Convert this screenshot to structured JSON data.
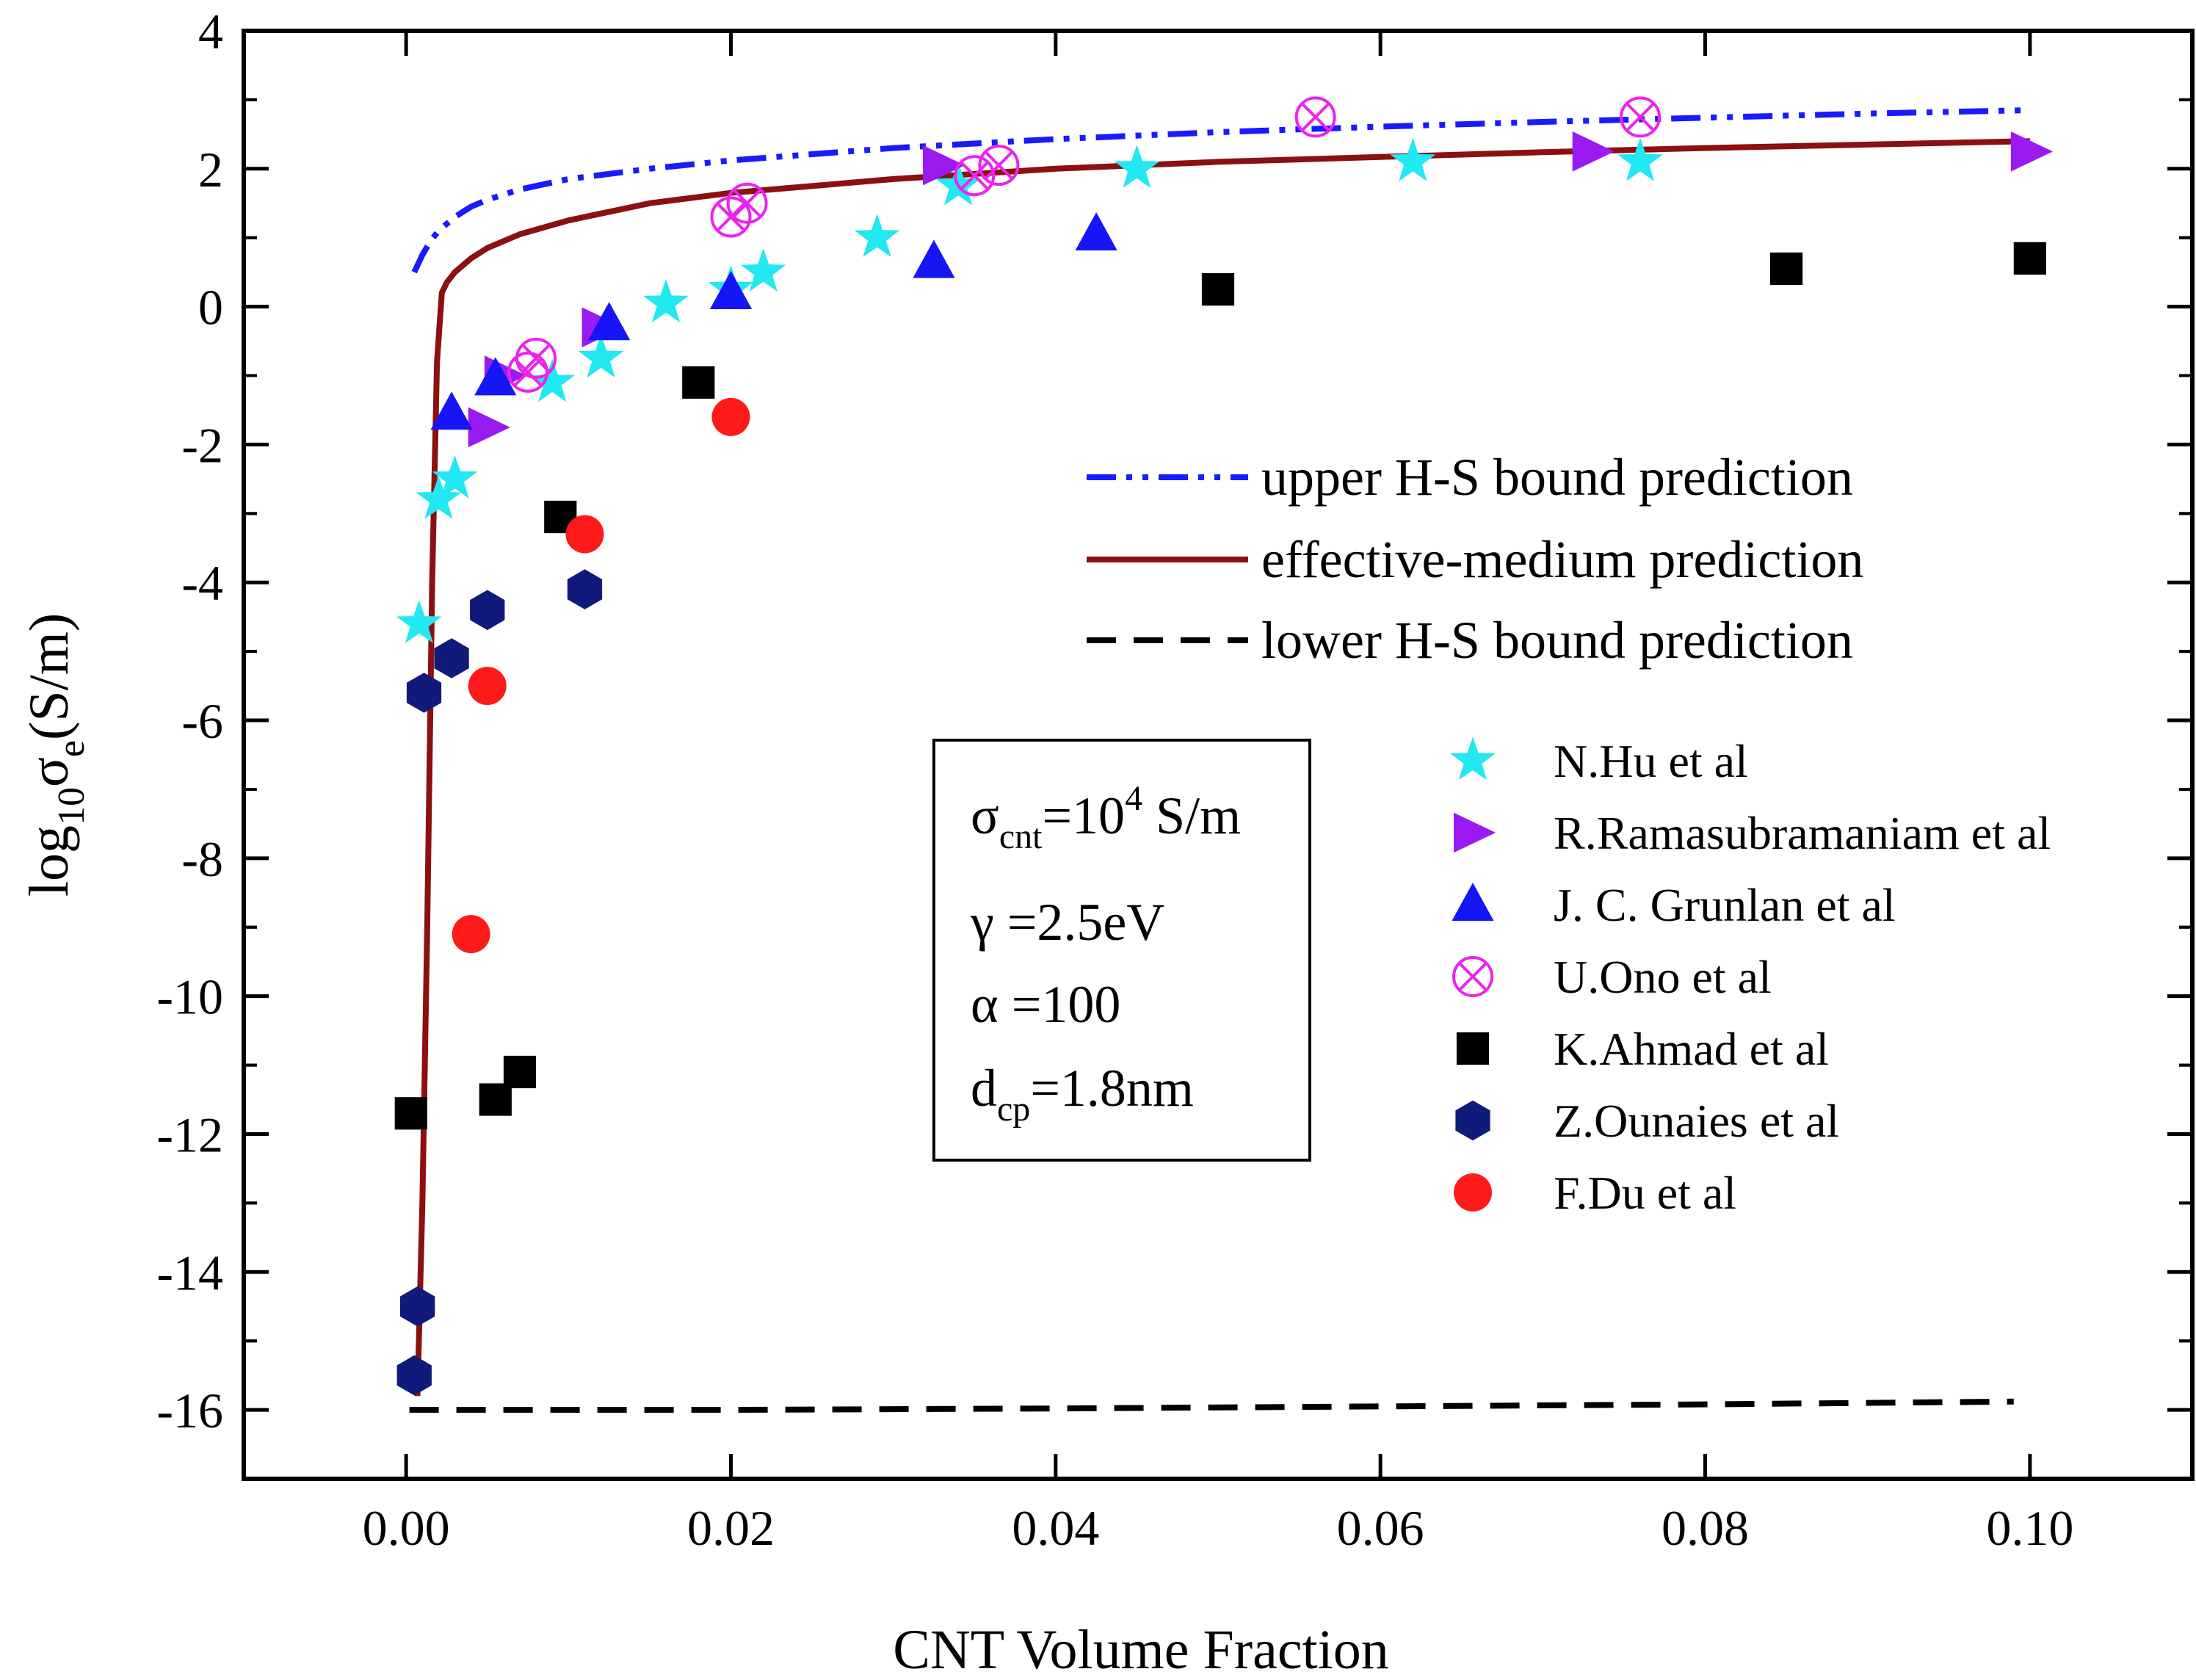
{
  "chart_data": {
    "type": "scatter",
    "title": "",
    "xlabel": "CNT Volume Fraction",
    "ylabel": {
      "prefix": "log",
      "sub1": "10",
      "sym": "σ",
      "sub2": "e",
      "suffix": "(S/m)"
    },
    "xlim": [
      -0.01,
      0.11
    ],
    "ylim": [
      -17,
      4
    ],
    "xticks": [
      0.0,
      0.02,
      0.04,
      0.06,
      0.08,
      0.1
    ],
    "xtick_labels": [
      "0.00",
      "0.02",
      "0.04",
      "0.06",
      "0.08",
      "0.10"
    ],
    "yticks": [
      4,
      2,
      0,
      -2,
      -4,
      -6,
      -8,
      -10,
      -12,
      -14,
      -16
    ],
    "ytick_labels": [
      "4",
      "2",
      "0",
      "-2",
      "-4",
      "-6",
      "-8",
      "-10",
      "-12",
      "-14",
      "-16"
    ],
    "grid": false,
    "lines": [
      {
        "name": "upper H-S bound prediction",
        "color": "#1a1aff",
        "style": "dash-dot-dot",
        "x": [
          0.0005,
          0.001,
          0.0015,
          0.002,
          0.003,
          0.004,
          0.005,
          0.007,
          0.01,
          0.015,
          0.02,
          0.03,
          0.04,
          0.05,
          0.06,
          0.07,
          0.08,
          0.09,
          0.1
        ],
        "y": [
          0.5,
          0.75,
          0.95,
          1.1,
          1.3,
          1.45,
          1.55,
          1.7,
          1.85,
          2.0,
          2.12,
          2.3,
          2.43,
          2.53,
          2.61,
          2.68,
          2.74,
          2.8,
          2.85
        ]
      },
      {
        "name": "effective-medium prediction",
        "color": "#8b1010",
        "style": "solid",
        "x": [
          0.0007,
          0.001,
          0.0013,
          0.0016,
          0.0019,
          0.0022,
          0.0025,
          0.003,
          0.004,
          0.005,
          0.007,
          0.01,
          0.015,
          0.02,
          0.03,
          0.04,
          0.05,
          0.06,
          0.07,
          0.08,
          0.09,
          0.1
        ],
        "y": [
          -15.8,
          -13,
          -9,
          -4,
          -0.8,
          0.2,
          0.35,
          0.5,
          0.7,
          0.85,
          1.05,
          1.25,
          1.5,
          1.65,
          1.85,
          2.0,
          2.1,
          2.17,
          2.24,
          2.3,
          2.35,
          2.4
        ]
      },
      {
        "name": "lower H-S bound prediction",
        "color": "#000000",
        "style": "dashed",
        "x": [
          0.0002,
          0.02,
          0.04,
          0.06,
          0.08,
          0.099
        ],
        "y": [
          -16.0,
          -16.0,
          -15.98,
          -15.95,
          -15.92,
          -15.88
        ]
      }
    ],
    "series": [
      {
        "name": "N.Hu et al",
        "marker": "star",
        "color": "#22e8f2",
        "x": [
          0.0008,
          0.002,
          0.003,
          0.009,
          0.012,
          0.016,
          0.02,
          0.022,
          0.029,
          0.034,
          0.045,
          0.062,
          0.076
        ],
        "y": [
          -4.6,
          -2.8,
          -2.5,
          -1.1,
          -0.75,
          0.05,
          0.25,
          0.5,
          1.0,
          1.75,
          2.0,
          2.1,
          2.1
        ]
      },
      {
        "name": "R.Ramasubramaniam et al",
        "marker": "triangle-right",
        "color": "#9a1af0",
        "x": [
          0.005,
          0.006,
          0.012,
          0.033,
          0.073,
          0.1
        ],
        "y": [
          -1.75,
          -1.0,
          -0.3,
          2.05,
          2.25,
          2.25
        ]
      },
      {
        "name": "J. C. Grunlan et al",
        "marker": "triangle-up",
        "color": "#1515f5",
        "x": [
          0.0028,
          0.0055,
          0.0125,
          0.02,
          0.0325,
          0.0425
        ],
        "y": [
          -1.55,
          -1.05,
          -0.25,
          0.2,
          0.65,
          1.05
        ]
      },
      {
        "name": "U.Ono et al",
        "marker": "circle-x",
        "color": "#ee22ee",
        "x": [
          0.0075,
          0.008,
          0.02,
          0.021,
          0.035,
          0.0365,
          0.056,
          0.076
        ],
        "y": [
          -0.95,
          -0.75,
          1.3,
          1.5,
          1.9,
          2.05,
          2.75,
          2.75
        ]
      },
      {
        "name": "K.Ahmad et al",
        "marker": "square",
        "color": "#000000",
        "x": [
          0.0003,
          0.0055,
          0.007,
          0.0095,
          0.018,
          0.05,
          0.085,
          0.1
        ],
        "y": [
          -11.7,
          -11.5,
          -11.1,
          -3.05,
          -1.1,
          0.25,
          0.55,
          0.7
        ]
      },
      {
        "name": "Z.Ounaies et al",
        "marker": "hexagon",
        "color": "#0f1a7a",
        "x": [
          0.0005,
          0.0007,
          0.0011,
          0.0028,
          0.005,
          0.011
        ],
        "y": [
          -15.5,
          -14.5,
          -5.6,
          -5.1,
          -4.4,
          -4.1
        ]
      },
      {
        "name": "F.Du et al",
        "marker": "circle",
        "color": "#ff1a1a",
        "x": [
          0.004,
          0.005,
          0.011,
          0.02
        ],
        "y": [
          -9.1,
          -5.5,
          -3.3,
          -1.6
        ]
      }
    ],
    "legend_placement": "right",
    "annotation": {
      "line1": {
        "sym": "σ",
        "sub": "cnt",
        "eq": "=10",
        "sup": "4",
        "unit": " S/m"
      },
      "line2": "γ =2.5eV",
      "line3": "α =100",
      "line4": {
        "sym": "d",
        "sub": "cp",
        "rest": "=1.8nm"
      }
    }
  }
}
